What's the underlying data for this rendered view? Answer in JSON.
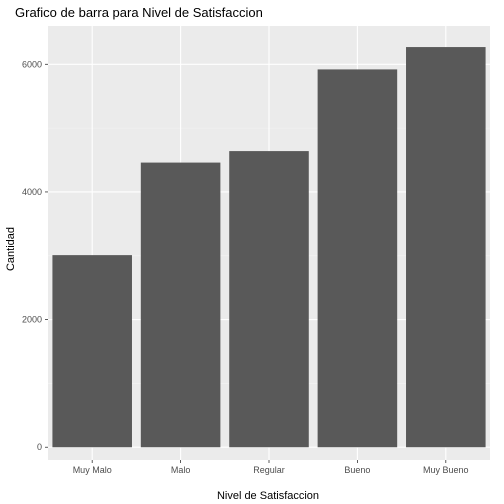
{
  "chart_data": {
    "type": "bar",
    "title": "Grafico de barra para Nivel de Satisfaccion",
    "xlabel": "Nivel de Satisfaccion",
    "ylabel": "Cantidad",
    "categories": [
      "Muy Malo",
      "Malo",
      "Regular",
      "Bueno",
      "Muy Bueno"
    ],
    "values": [
      3010,
      4460,
      4640,
      5920,
      6270
    ],
    "ylim": [
      -200,
      6600
    ],
    "yticks": [
      0,
      2000,
      4000,
      6000
    ],
    "ytick_labels": [
      "0",
      "2000",
      "4000",
      "6000"
    ],
    "grid": true,
    "legend": "none"
  },
  "colors": {
    "panel_background": "#ebebeb",
    "grid_major": "#ffffff",
    "grid_minor": "#f5f5f5",
    "bar_fill": "#595959",
    "tick_text": "#4d4d4d"
  }
}
